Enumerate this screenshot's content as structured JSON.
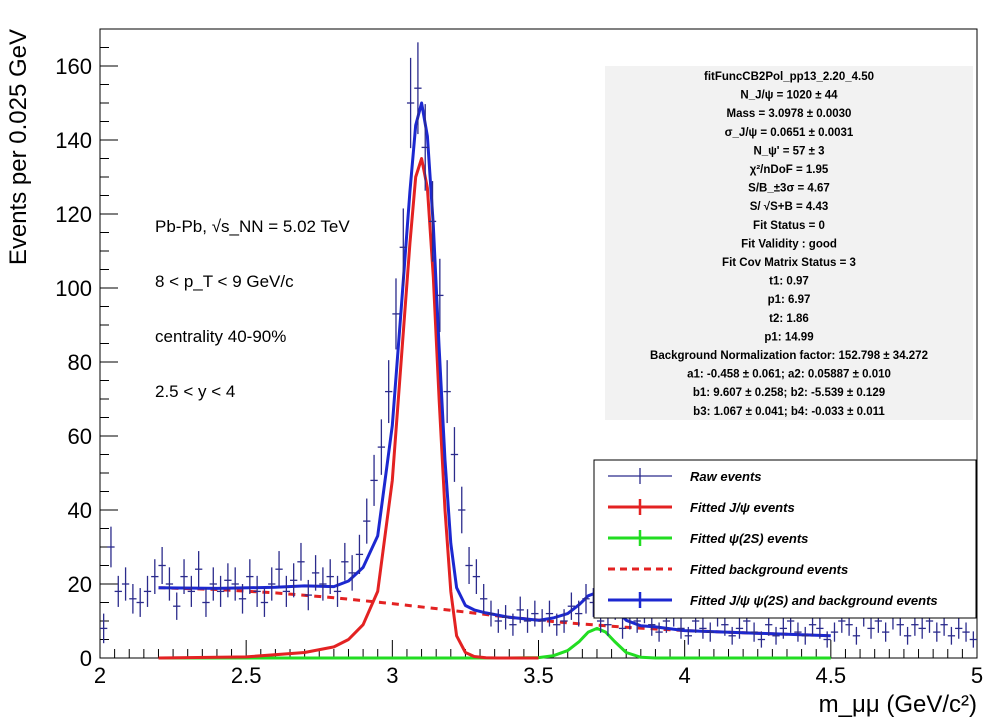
{
  "chart_data": {
    "type": "line",
    "xlabel": "m_μμ (GeV/c²)",
    "ylabel": "Events per 0.025 GeV",
    "xlim": [
      2,
      5
    ],
    "ylim": [
      0,
      170
    ],
    "x_ticks": [
      "2",
      "2.5",
      "3",
      "3.5",
      "4",
      "4.5",
      "5"
    ],
    "y_ticks": [
      "0",
      "20",
      "40",
      "60",
      "80",
      "100",
      "120",
      "140",
      "160"
    ],
    "annotations": [
      "Pb-Pb, √s_NN = 5.02 TeV",
      "8 < p_T < 9 GeV/c",
      "centrality 40-90%",
      "2.5 < y < 4"
    ],
    "stats": [
      "fitFuncCB2Pol_pp13_2.20_4.50",
      "N_J/ψ = 1020 ± 44",
      "Mass = 3.0978 ± 0.0030",
      "σ_J/ψ = 0.0651 ± 0.0031",
      "N_ψ' = 57 ± 3",
      "χ²/nDoF = 1.95",
      "S/B_±3σ = 4.67",
      "S/ √S+B = 4.43",
      "Fit Status = 0",
      "Fit Validity : good",
      "Fit Cov Matrix Status = 3",
      "t1: 0.97",
      "p1: 6.97",
      "t2: 1.86",
      "p1: 14.99",
      "Background Normalization factor: 152.798 ± 34.272",
      "a1: -0.458 ± 0.061; a2: 0.05887 ± 0.010",
      "b1: 9.607 ± 0.258; b2: -5.539 ± 0.129",
      "b3: 1.067 ± 0.041; b4: -0.033 ± 0.011"
    ],
    "legend_position": "bottom-right",
    "legend": [
      {
        "label": "Raw events",
        "color": "#2b2b8c",
        "style": "marker"
      },
      {
        "label": "Fitted J/ψ events",
        "color": "#e32222",
        "style": "line"
      },
      {
        "label": "Fitted ψ(2S) events",
        "color": "#22dd22",
        "style": "line"
      },
      {
        "label": "Fitted background events",
        "color": "#e32222",
        "style": "dashed"
      },
      {
        "label": "Fitted J/ψ ψ(2S) and background events",
        "color": "#1c28d0",
        "style": "line"
      }
    ],
    "raw_events": {
      "x": [
        2.0125,
        2.0375,
        2.0625,
        2.0875,
        2.1125,
        2.1375,
        2.1625,
        2.1875,
        2.2125,
        2.2375,
        2.2625,
        2.2875,
        2.3125,
        2.3375,
        2.3625,
        2.3875,
        2.4125,
        2.4375,
        2.4625,
        2.4875,
        2.5125,
        2.5375,
        2.5625,
        2.5875,
        2.6125,
        2.6375,
        2.6625,
        2.6875,
        2.7125,
        2.7375,
        2.7625,
        2.7875,
        2.8125,
        2.8375,
        2.8625,
        2.8875,
        2.9125,
        2.9375,
        2.9625,
        2.9875,
        3.0125,
        3.0375,
        3.0625,
        3.0875,
        3.1125,
        3.1375,
        3.1625,
        3.1875,
        3.2125,
        3.2375,
        3.2625,
        3.2875,
        3.3125,
        3.3375,
        3.3625,
        3.3875,
        3.4125,
        3.4375,
        3.4625,
        3.4875,
        3.5125,
        3.5375,
        3.5625,
        3.5875,
        3.6125,
        3.6375,
        3.6625,
        3.6875,
        3.7125,
        3.7375,
        3.7625,
        3.7875,
        3.8125,
        3.8375,
        3.8625,
        3.8875,
        3.9125,
        3.9375,
        3.9625,
        3.9875,
        4.0125,
        4.0375,
        4.0625,
        4.0875,
        4.1125,
        4.1375,
        4.1625,
        4.1875,
        4.2125,
        4.2375,
        4.2625,
        4.2875,
        4.3125,
        4.3375,
        4.3625,
        4.3875,
        4.4125,
        4.4375,
        4.4625,
        4.4875,
        4.5125,
        4.5375,
        4.5625,
        4.5875,
        4.6125,
        4.6375,
        4.6625,
        4.6875,
        4.7125,
        4.7375,
        4.7625,
        4.7875,
        4.8125,
        4.8375,
        4.8625,
        4.8875,
        4.9125,
        4.9375,
        4.9625,
        4.9875
      ],
      "y": [
        8,
        30,
        18,
        20,
        16,
        15,
        18,
        22,
        25,
        20,
        14,
        22,
        18,
        24,
        15,
        20,
        18,
        21,
        20,
        16,
        22,
        18,
        15,
        20,
        24,
        18,
        21,
        26,
        17,
        23,
        20,
        22,
        18,
        26,
        23,
        28,
        37,
        48,
        57,
        72,
        93,
        111,
        150,
        154,
        138,
        118,
        98,
        72,
        55,
        40,
        25,
        22,
        16,
        12,
        10,
        11,
        9,
        13,
        10,
        12,
        10,
        12,
        9,
        10,
        14,
        12,
        16,
        15,
        10,
        9,
        14,
        8,
        11,
        10,
        13,
        9,
        7,
        10,
        12,
        8,
        6,
        10,
        8,
        7,
        12,
        9,
        6,
        8,
        10,
        7,
        5,
        9,
        6,
        8,
        10,
        7,
        6,
        9,
        8,
        5,
        7,
        10,
        9,
        6,
        12,
        8,
        10,
        7,
        11,
        9,
        6,
        9,
        8,
        10,
        7,
        9,
        6,
        8,
        7,
        5
      ],
      "yerr": [
        4,
        5.5,
        4.2,
        4.5,
        4,
        3.9,
        4.2,
        4.7,
        5,
        4.5,
        3.7,
        4.7,
        4.2,
        4.9,
        3.9,
        4.5,
        4.2,
        4.6,
        4.5,
        4,
        4.7,
        4.2,
        3.9,
        4.5,
        4.9,
        4.2,
        4.6,
        5.1,
        4.1,
        4.8,
        4.5,
        4.7,
        4.2,
        5.1,
        4.8,
        5.3,
        6.1,
        6.9,
        7.5,
        8.5,
        9.6,
        10.5,
        12.2,
        12.4,
        11.7,
        10.9,
        9.9,
        8.5,
        7.4,
        6.3,
        5,
        4.7,
        4,
        3.5,
        3.2,
        3.3,
        3,
        3.6,
        3.2,
        3.5,
        3.2,
        3.5,
        3,
        3.2,
        3.7,
        3.5,
        4,
        3.9,
        3.2,
        3,
        3.7,
        2.8,
        3.3,
        3.2,
        3.6,
        3,
        2.6,
        3.2,
        3.5,
        2.8,
        2.4,
        3.2,
        2.8,
        2.6,
        3.5,
        3,
        2.4,
        2.8,
        3.2,
        2.6,
        2.2,
        3,
        2.4,
        2.8,
        3.2,
        2.6,
        2.4,
        3,
        2.8,
        2.2,
        2.6,
        3.2,
        3,
        2.4,
        3.5,
        2.8,
        3.2,
        2.6,
        3.3,
        3,
        2.4,
        3,
        2.8,
        3.2,
        2.6,
        3,
        2.4,
        2.8,
        2.6,
        2.2
      ]
    },
    "fit_jpsi": {
      "x": [
        2.2,
        2.5,
        2.7,
        2.8,
        2.85,
        2.9,
        2.95,
        3.0,
        3.03,
        3.06,
        3.08,
        3.1,
        3.12,
        3.14,
        3.16,
        3.18,
        3.2,
        3.22,
        3.25,
        3.28,
        3.32,
        3.36,
        3.4,
        3.5
      ],
      "y": [
        0,
        0.3,
        1.5,
        3,
        5,
        9,
        18,
        48,
        80,
        112,
        130,
        135,
        127,
        103,
        70,
        40,
        18,
        6,
        1.5,
        0.4,
        0.05,
        0,
        0,
        0
      ]
    },
    "fit_psi2s": {
      "x": [
        2.2,
        3.4,
        3.5,
        3.55,
        3.6,
        3.64,
        3.67,
        3.7,
        3.73,
        3.76,
        3.8,
        3.85,
        3.9,
        4.5
      ],
      "y": [
        0,
        0,
        0.1,
        0.6,
        2,
        4.5,
        7,
        8,
        7,
        4.5,
        1.5,
        0.2,
        0,
        0
      ]
    },
    "fit_background": {
      "x": [
        2.2,
        2.4,
        2.6,
        2.8,
        3.0,
        3.2,
        3.4,
        3.6,
        3.8,
        4.0,
        4.2,
        4.4,
        4.5
      ],
      "y": [
        19,
        18.5,
        17.6,
        16.3,
        14.7,
        12.9,
        11,
        9.5,
        8.3,
        7.4,
        6.8,
        6.3,
        6
      ]
    },
    "fit_total": {
      "x": [
        2.2,
        2.4,
        2.6,
        2.7,
        2.8,
        2.85,
        2.9,
        2.95,
        3.0,
        3.03,
        3.06,
        3.08,
        3.1,
        3.12,
        3.14,
        3.16,
        3.18,
        3.2,
        3.22,
        3.25,
        3.28,
        3.32,
        3.36,
        3.4,
        3.5,
        3.55,
        3.6,
        3.64,
        3.67,
        3.7,
        3.73,
        3.76,
        3.8,
        3.85,
        3.9,
        4.0,
        4.2,
        4.4,
        4.5
      ],
      "y": [
        19,
        18.8,
        19.1,
        19.5,
        19.3,
        20.8,
        24.5,
        33,
        62.8,
        94,
        126,
        144,
        150,
        141,
        117,
        84,
        53.5,
        31,
        19,
        14.2,
        13,
        12.2,
        11.6,
        11,
        10.2,
        10.8,
        12,
        14.5,
        16.8,
        17.7,
        16.5,
        13.7,
        10.2,
        8.7,
        8.4,
        7.4,
        6.8,
        6.3,
        6
      ]
    }
  }
}
